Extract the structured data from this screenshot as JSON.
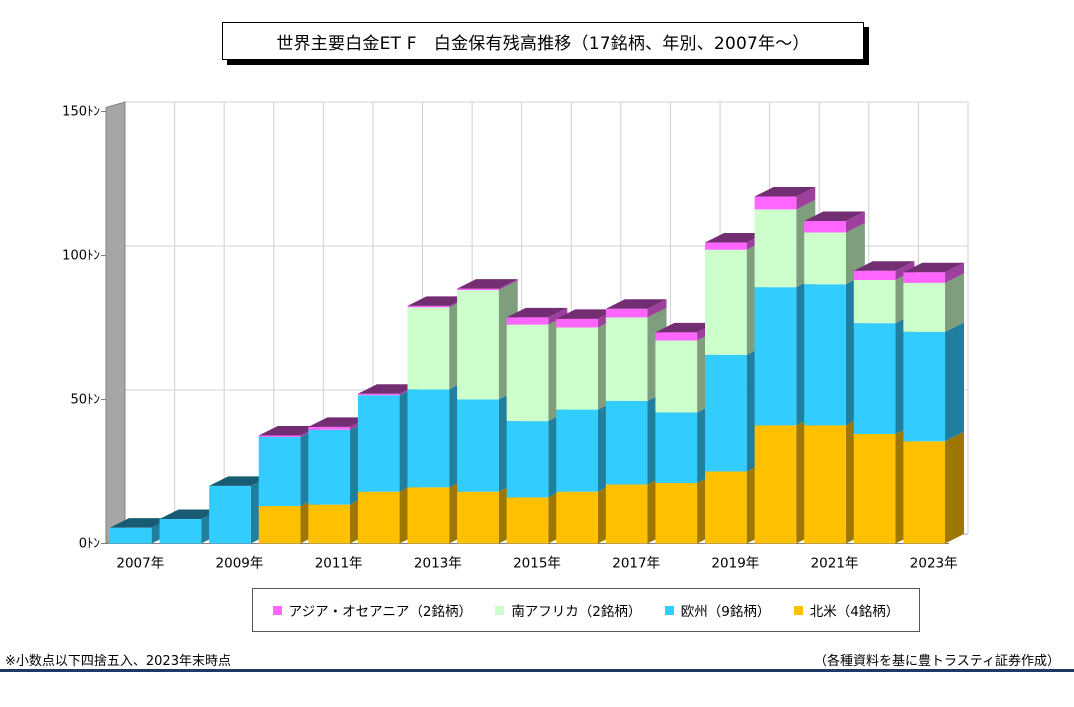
{
  "header": {
    "title": "世界主要白金ET F　白金保有残高推移（17銘柄、年別、2007年～）"
  },
  "notes": {
    "left": "※小数点以下四捨五入、2023年末時点",
    "right": "（各種資料を基に豊トラスティ証券作成）"
  },
  "colors": {
    "asia": "#ff66ff",
    "south_africa": "#ccffcc",
    "europe": "#33ccff",
    "north_america": "#ffc000",
    "side_wall": "#a6a6a6",
    "grid": "#d0d0d0"
  },
  "chart_data": {
    "type": "bar",
    "stacked": true,
    "three_d": true,
    "categories": [
      "2007",
      "2008",
      "2009",
      "2010",
      "2011",
      "2012",
      "2013",
      "2014",
      "2015",
      "2016",
      "2017",
      "2018",
      "2019",
      "2020",
      "2021",
      "2022",
      "2023"
    ],
    "x_tick_labels": [
      "2007年",
      "",
      "2009年",
      "",
      "2011年",
      "",
      "2013年",
      "",
      "2015年",
      "",
      "2017年",
      "",
      "2019年",
      "",
      "2021年",
      "",
      "2023年"
    ],
    "y_tick_labels": [
      "0ﾄﾝ",
      "50ﾄﾝ",
      "100ﾄﾝ",
      "150ﾄﾝ"
    ],
    "ylim": [
      0,
      150
    ],
    "series": [
      {
        "name": "北米（4銘柄）",
        "key": "north_america",
        "values": [
          0,
          0,
          0,
          13,
          13.5,
          18,
          19.5,
          18,
          16,
          18,
          20.5,
          21,
          25,
          41,
          41,
          38,
          35.5
        ]
      },
      {
        "name": "欧州（9銘柄）",
        "key": "europe",
        "values": [
          5.5,
          8.5,
          20,
          24,
          26,
          33.5,
          34,
          32,
          26.5,
          28.5,
          29,
          24.5,
          40.5,
          48,
          49,
          38.5,
          38
        ]
      },
      {
        "name": "南アフリカ（2銘柄）",
        "key": "south_africa",
        "values": [
          0,
          0,
          0,
          0,
          0,
          0,
          28.5,
          38,
          33.5,
          28.5,
          29,
          25,
          36.5,
          27,
          18,
          15,
          17
        ]
      },
      {
        "name": "アジア・オセアニア（2銘柄）",
        "key": "asia",
        "values": [
          0,
          0,
          0,
          0.5,
          1,
          0.5,
          0.5,
          0.5,
          2.5,
          3,
          3,
          2.8,
          2.5,
          4.5,
          4,
          3.2,
          3.7
        ]
      }
    ],
    "legend_order": [
      "asia",
      "south_africa",
      "europe",
      "north_america"
    ],
    "legend_position": "bottom",
    "grid": true
  }
}
